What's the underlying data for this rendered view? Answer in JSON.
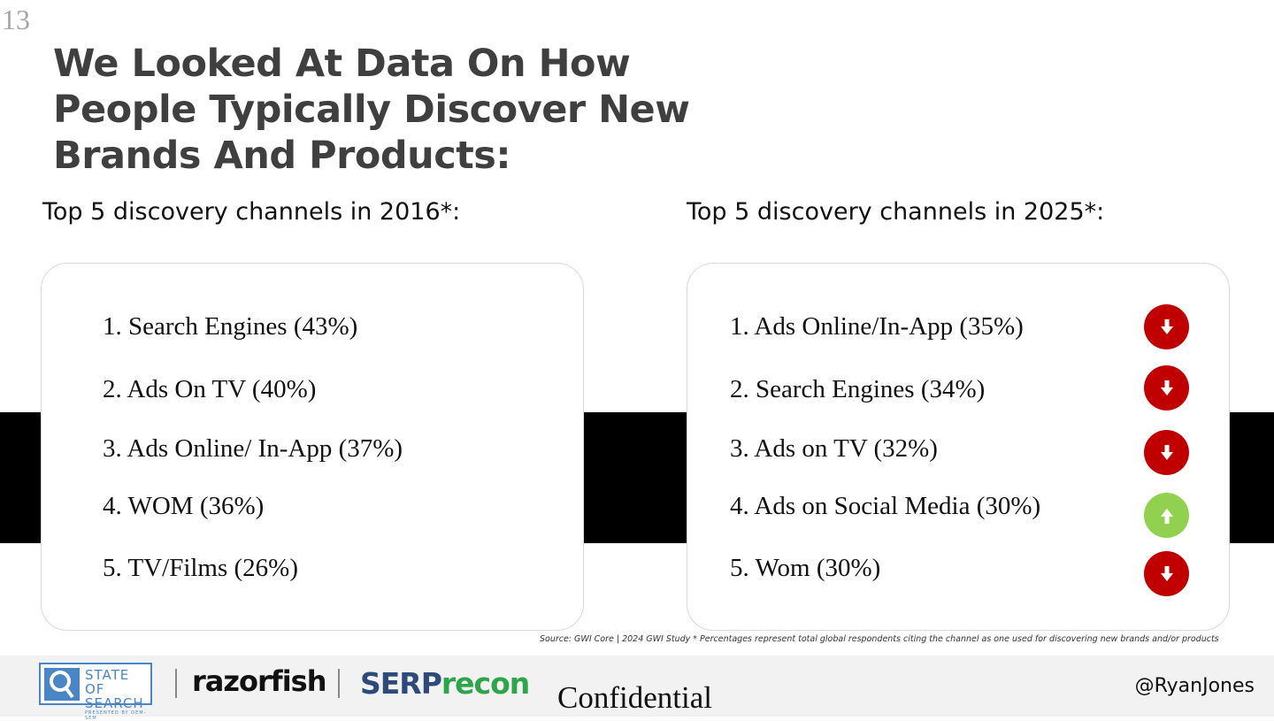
{
  "slide_number": "13",
  "title": "We Looked At Data On How People Typically Discover New Brands And Products:",
  "left": {
    "heading": "Top 5 discovery channels in 2016*:",
    "items": [
      "1. Search Engines (43%)",
      "2. Ads On TV (40%)",
      "3. Ads Online/ In-App (37%)",
      "4. WOM (36%)",
      "5. TV/Films (26%)"
    ]
  },
  "right": {
    "heading": "Top 5 discovery channels in 2025*:",
    "items": [
      {
        "text": "1. Ads Online/In-App (35%)",
        "trend": "down",
        "icon": "arrow-down-icon",
        "color": "#c00000"
      },
      {
        "text": "2. Search Engines (34%)",
        "trend": "down",
        "icon": "arrow-down-icon",
        "color": "#c00000"
      },
      {
        "text": "3. Ads on TV (32%)",
        "trend": "down",
        "icon": "arrow-down-icon",
        "color": "#c00000"
      },
      {
        "text": "4. Ads on Social Media (30%)",
        "trend": "up",
        "icon": "arrow-up-icon",
        "color": "#92d050"
      },
      {
        "text": "5. Wom (30%)",
        "trend": "down",
        "icon": "arrow-down-icon",
        "color": "#c00000"
      }
    ]
  },
  "source": "Source: GWI Core | 2024  GWI  Study * Percentages represent total global respondents citing the channel as one used for discovering new brands and/or products",
  "footer": {
    "sos_logo": {
      "line1": "STATE OF",
      "line2": "SEARCH",
      "line3": "PRESENTED BY OEM-SEM"
    },
    "razorfish": "razorfish",
    "serprecon_a": "SERP",
    "serprecon_b": "recon",
    "confidential": "Confidential",
    "handle": "@RyanJones"
  },
  "colors": {
    "title": "#3f3f3f",
    "down": "#c00000",
    "up": "#92d050",
    "band": "#000000",
    "footer_bg": "#f2f2f2"
  }
}
